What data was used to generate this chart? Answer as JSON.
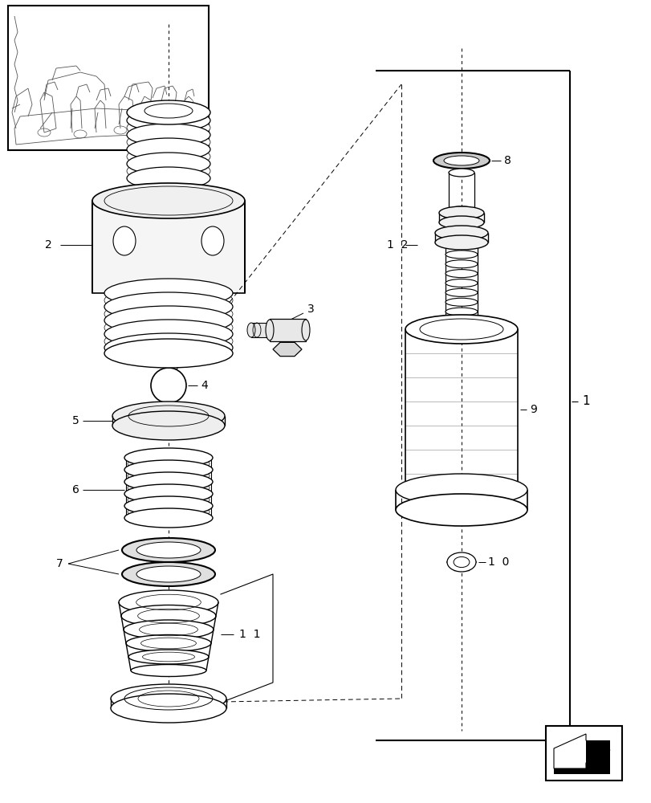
{
  "bg_color": "#ffffff",
  "line_color": "#000000",
  "dark_gray": "#555555",
  "mid_gray": "#888888",
  "light_gray": "#cccccc",
  "fig_w": 8.12,
  "fig_h": 10.0,
  "dpi": 100
}
